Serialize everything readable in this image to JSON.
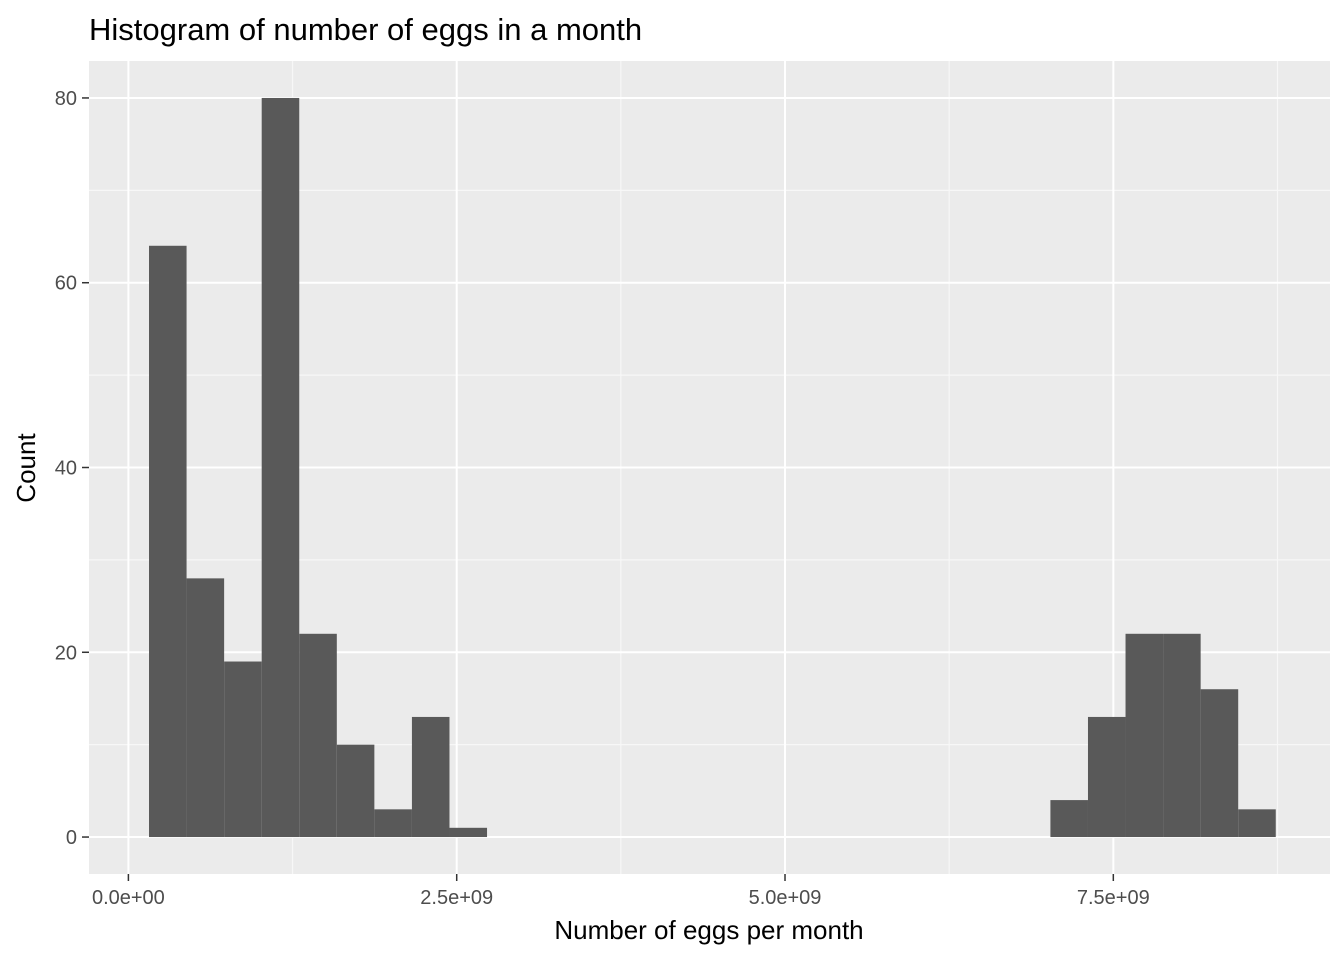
{
  "chart_data": {
    "type": "bar",
    "title": "Histogram of number of eggs in a month",
    "xlabel": "Number of eggs per month",
    "ylabel": "Count",
    "xlim": [
      -300000000,
      9150000000
    ],
    "ylim": [
      -4,
      84
    ],
    "x_ticks": [
      0,
      2500000000,
      5000000000,
      7500000000
    ],
    "x_tick_labels": [
      "0.0e+00",
      "2.5e+09",
      "5.0e+09",
      "7.5e+09"
    ],
    "y_ticks": [
      0,
      20,
      40,
      60,
      80
    ],
    "y_tick_labels": [
      "0",
      "20",
      "40",
      "60",
      "80"
    ],
    "bin_width": 286000000,
    "bins": [
      {
        "x": 300000000,
        "count": 64
      },
      {
        "x": 586000000,
        "count": 28
      },
      {
        "x": 872000000,
        "count": 19
      },
      {
        "x": 1158000000,
        "count": 80
      },
      {
        "x": 1444000000,
        "count": 22
      },
      {
        "x": 1730000000,
        "count": 10
      },
      {
        "x": 2016000000,
        "count": 3
      },
      {
        "x": 2302000000,
        "count": 13
      },
      {
        "x": 2588000000,
        "count": 1
      },
      {
        "x": 7164000000,
        "count": 4
      },
      {
        "x": 7450000000,
        "count": 13
      },
      {
        "x": 7736000000,
        "count": 22
      },
      {
        "x": 8022000000,
        "count": 22
      },
      {
        "x": 8308000000,
        "count": 16
      },
      {
        "x": 8594000000,
        "count": 3
      }
    ],
    "grid": true,
    "colors": {
      "panel_background": "#ebebeb",
      "grid_major": "#ffffff",
      "grid_minor": "#f7f7f7",
      "bar_fill": "#595959",
      "tick_color": "#333333",
      "tick_label": "#4d4d4d"
    }
  }
}
